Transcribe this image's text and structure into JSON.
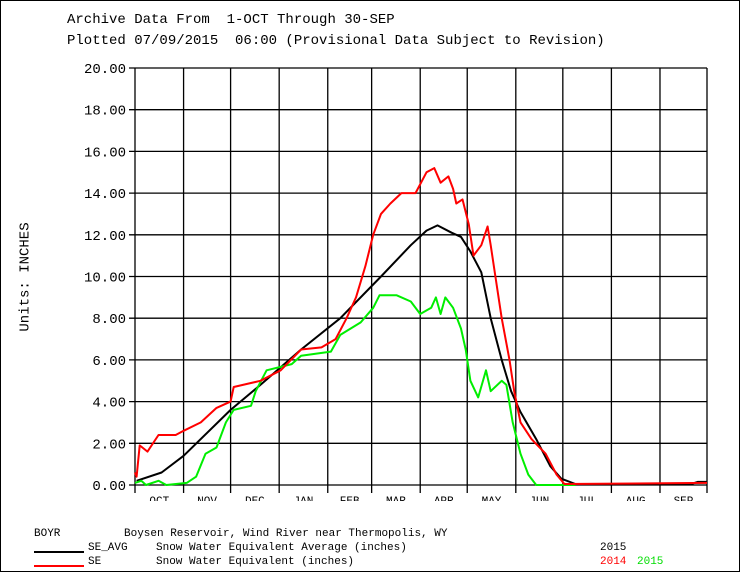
{
  "header": {
    "line1": "Archive Data From  1-OCT Through 30-SEP",
    "line2": "Plotted 07/09/2015  06:00 (Provisional Data Subject to Revision)"
  },
  "legend": {
    "station_id": "BOYR",
    "station_name": "Boysen Reservoir, Wind River near Thermopolis, WY",
    "rows": [
      {
        "code": "SE_AVG",
        "desc": "Snow Water Equivalent Average (inches)",
        "years": [
          {
            "label": "2015",
            "color": "#000000"
          }
        ],
        "color": "#000000"
      },
      {
        "code": "SE",
        "desc": "Snow Water Equivalent (inches)",
        "years": [
          {
            "label": "2014",
            "color": "#ff0000"
          },
          {
            "label": "2015",
            "color": "#00ee00"
          }
        ],
        "color": "#ff0000"
      }
    ]
  },
  "chart_data": {
    "type": "line",
    "title": "Archive Data From 1-OCT Through 30-SEP",
    "xlabel": "",
    "ylabel": "Units: INCHES",
    "x_units": "day of water year (0 = 1-OCT)",
    "xlim": [
      0,
      365
    ],
    "ylim": [
      0,
      20
    ],
    "grid": true,
    "yticks": [
      "0.00",
      "2.00",
      "4.00",
      "6.00",
      "8.00",
      "10.00",
      "12.00",
      "14.00",
      "16.00",
      "18.00",
      "20.00"
    ],
    "ytick_values": [
      0,
      2,
      4,
      6,
      8,
      10,
      12,
      14,
      16,
      18,
      20
    ],
    "month_labels": [
      "OCT",
      "NOV",
      "DEC",
      "JAN",
      "FEB",
      "MAR",
      "APR",
      "MAY",
      "JUN",
      "JUL",
      "AUG",
      "SEP"
    ],
    "month_starts": [
      0,
      31,
      61,
      92,
      123,
      151,
      182,
      212,
      243,
      273,
      304,
      335,
      365
    ],
    "series": [
      {
        "name": "SE_AVG 2015 (Average)",
        "color": "#000000",
        "x": [
          1,
          17,
          31,
          61,
          80,
          106,
          131,
          157,
          176,
          186,
          193,
          202,
          208,
          214,
          221,
          227,
          234,
          240,
          246,
          256,
          265,
          272,
          281,
          355,
          359,
          365
        ],
        "y": [
          0.2,
          0.6,
          1.4,
          3.6,
          4.8,
          6.5,
          8.0,
          10.0,
          11.5,
          12.2,
          12.45,
          12.1,
          11.9,
          11.2,
          10.2,
          8.0,
          6.0,
          4.5,
          3.5,
          2.2,
          0.9,
          0.3,
          0.05,
          0.05,
          0.15,
          0.15
        ]
      },
      {
        "name": "SE 2014",
        "color": "#ff0000",
        "x": [
          0,
          1,
          3,
          8,
          15,
          26,
          31,
          42,
          52,
          61,
          63,
          80,
          93,
          106,
          119,
          128,
          135,
          141,
          147,
          152,
          157,
          163,
          170,
          179,
          186,
          191,
          195,
          200,
          203,
          205,
          209,
          213,
          216,
          221,
          225,
          227,
          230,
          234,
          239,
          242,
          246,
          253,
          262,
          269,
          274,
          365
        ],
        "y": [
          0.6,
          0.4,
          1.9,
          1.6,
          2.4,
          2.4,
          2.6,
          3.0,
          3.7,
          4.0,
          4.7,
          5.0,
          5.5,
          6.5,
          6.6,
          7.0,
          8.0,
          9.0,
          10.5,
          12.0,
          13.0,
          13.5,
          14.0,
          14.0,
          15.0,
          15.2,
          14.5,
          14.8,
          14.2,
          13.5,
          13.7,
          12.5,
          11.0,
          11.5,
          12.4,
          11.5,
          10.0,
          8.0,
          6.0,
          4.5,
          3.0,
          2.2,
          1.5,
          0.5,
          0.05,
          0.1
        ]
      },
      {
        "name": "SE 2015",
        "color": "#00ee00",
        "x": [
          0,
          4,
          7,
          15,
          20,
          33,
          39,
          45,
          52,
          58,
          63,
          74,
          77,
          84,
          100,
          106,
          125,
          131,
          144,
          152,
          156,
          167,
          176,
          182,
          189,
          192,
          195,
          198,
          203,
          208,
          211,
          214,
          219,
          224,
          227,
          234,
          237,
          241,
          246,
          251,
          256,
          281
        ],
        "y": [
          0.1,
          0.2,
          0.0,
          0.2,
          0.0,
          0.1,
          0.4,
          1.5,
          1.8,
          3.0,
          3.6,
          3.8,
          4.5,
          5.5,
          5.8,
          6.2,
          6.4,
          7.2,
          7.8,
          8.5,
          9.1,
          9.1,
          8.8,
          8.2,
          8.5,
          9.0,
          8.2,
          9.0,
          8.5,
          7.5,
          6.5,
          5.0,
          4.2,
          5.5,
          4.5,
          5.0,
          4.8,
          3.0,
          1.5,
          0.5,
          0.0,
          0.0
        ]
      }
    ]
  }
}
